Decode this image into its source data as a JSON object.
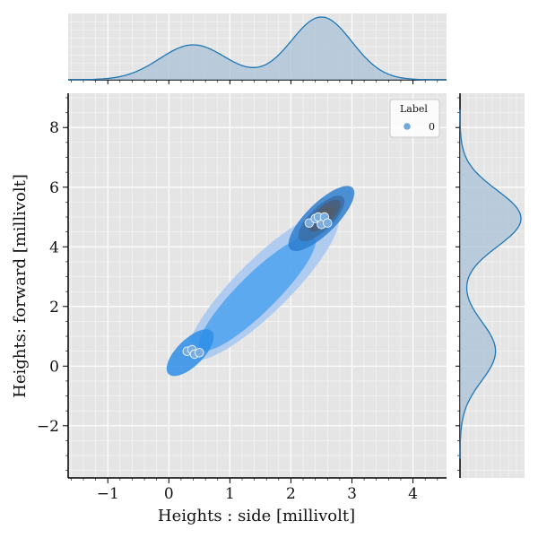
{
  "chart_data": {
    "type": "scatter",
    "subtype": "joint-plot with kde contours and marginal kde",
    "xlabel": "Heights : side [millivolt]",
    "ylabel": "Heights: forward [millivolt]",
    "xlim": [
      -1.65,
      4.55
    ],
    "ylim": [
      -3.75,
      9.15
    ],
    "x_ticks": [
      -1,
      0,
      1,
      2,
      3,
      4
    ],
    "x_tick_labels": [
      "−1",
      "0",
      "1",
      "2",
      "3",
      "4"
    ],
    "y_ticks": [
      -2,
      0,
      2,
      4,
      6,
      8
    ],
    "y_tick_labels": [
      "−2",
      "0",
      "2",
      "4",
      "6",
      "8"
    ],
    "grid": true,
    "background": "#e5e5e5",
    "legend": {
      "title": "Label",
      "placement": "top-right",
      "entries": [
        {
          "label": "0",
          "color": "#6fa8dc"
        }
      ]
    },
    "series": [
      {
        "name": "0",
        "color": "#7aaee0",
        "points": [
          {
            "x": 0.3,
            "y": 0.5
          },
          {
            "x": 0.38,
            "y": 0.55
          },
          {
            "x": 0.42,
            "y": 0.4
          },
          {
            "x": 0.5,
            "y": 0.45
          },
          {
            "x": 2.3,
            "y": 4.8
          },
          {
            "x": 2.4,
            "y": 4.95
          },
          {
            "x": 2.45,
            "y": 5.0
          },
          {
            "x": 2.5,
            "y": 4.75
          },
          {
            "x": 2.55,
            "y": 5.0
          },
          {
            "x": 2.6,
            "y": 4.8
          }
        ]
      }
    ],
    "kde_contours": {
      "colors": [
        "#a8c8f0",
        "#4fa3f0",
        "#2e8ee8",
        "#2f7fd0",
        "#3a6fa6",
        "#4a5e78",
        "#565c66"
      ],
      "axis_start": [
        -0.85,
        -2.1
      ],
      "axis_end": [
        3.9,
        7.5
      ],
      "levels": [
        {
          "center": [
            1.55,
            2.7
          ],
          "half_length": 5.4,
          "half_width": 0.14
        },
        {
          "center": [
            1.45,
            2.45
          ],
          "half_length": 4.2,
          "half_width": 0.1
        },
        {
          "center": [
            0.35,
            0.45
          ],
          "half_length": 1.6,
          "half_width": 0.07
        },
        {
          "center": [
            2.5,
            4.95
          ],
          "half_length": 2.3,
          "half_width": 0.08
        },
        {
          "center": [
            2.5,
            4.95
          ],
          "half_length": 1.6,
          "half_width": 0.06
        },
        {
          "center": [
            2.55,
            5.05
          ],
          "half_length": 1.1,
          "half_width": 0.045
        },
        {
          "center": [
            2.55,
            5.05
          ],
          "half_length": 0.6,
          "half_width": 0.03
        }
      ]
    },
    "marginal_x": {
      "color": "#1f77b4",
      "fill": "#a9c2d6",
      "components": [
        {
          "mean": 0.4,
          "sd": 0.55,
          "weight": 0.38
        },
        {
          "mean": 2.5,
          "sd": 0.5,
          "weight": 0.62
        }
      ]
    },
    "marginal_y": {
      "color": "#1f77b4",
      "fill": "#a9c2d6",
      "components": [
        {
          "mean": 0.5,
          "sd": 1.0,
          "weight": 0.38
        },
        {
          "mean": 4.95,
          "sd": 0.95,
          "weight": 0.62
        }
      ]
    }
  }
}
